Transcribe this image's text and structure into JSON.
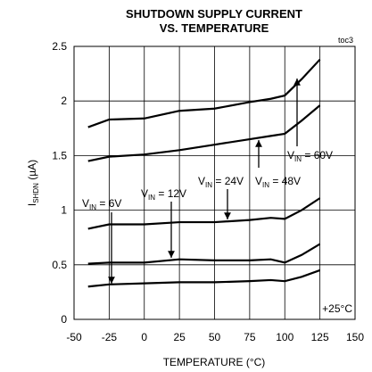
{
  "chart_data": {
    "type": "line",
    "title": [
      "SHUTDOWN SUPPLY CURRENT",
      "VS. TEMPERATURE"
    ],
    "x_label": "TEMPERATURE (°C)",
    "y_label": {
      "prefix": "I",
      "subscript": "SHDN",
      "suffix": " (µA)"
    },
    "x": [
      -40,
      -25,
      0,
      25,
      50,
      75,
      90,
      100,
      112,
      125
    ],
    "series": [
      {
        "name": {
          "prefix": "V",
          "subscript": "IN",
          "suffix": " = 60V"
        },
        "color": "#000000",
        "values": [
          1.76,
          1.83,
          1.84,
          1.91,
          1.93,
          1.99,
          2.02,
          2.05,
          2.2,
          2.38
        ]
      },
      {
        "name": {
          "prefix": "V",
          "subscript": "IN",
          "suffix": " = 48V"
        },
        "color": "#000000",
        "values": [
          1.45,
          1.49,
          1.51,
          1.55,
          1.6,
          1.65,
          1.68,
          1.7,
          1.82,
          1.96
        ]
      },
      {
        "name": {
          "prefix": "V",
          "subscript": "IN",
          "suffix": " = 24V"
        },
        "color": "#000000",
        "values": [
          0.83,
          0.87,
          0.87,
          0.89,
          0.89,
          0.91,
          0.93,
          0.92,
          1.0,
          1.11
        ]
      },
      {
        "name": {
          "prefix": "V",
          "subscript": "IN",
          "suffix": " = 12V"
        },
        "color": "#000000",
        "values": [
          0.51,
          0.52,
          0.52,
          0.55,
          0.54,
          0.54,
          0.55,
          0.52,
          0.59,
          0.69
        ]
      },
      {
        "name": {
          "prefix": "V",
          "subscript": "IN",
          "suffix": " = 6V"
        },
        "color": "#000000",
        "values": [
          0.3,
          0.32,
          0.33,
          0.34,
          0.34,
          0.35,
          0.36,
          0.35,
          0.39,
          0.45
        ]
      }
    ],
    "annotations": [
      "toc3",
      "+25°C"
    ],
    "xlim": [
      -50,
      150
    ],
    "xticks": [
      -50,
      -25,
      0,
      25,
      50,
      75,
      100,
      125,
      150
    ],
    "ylim": [
      0,
      2.5
    ],
    "yticks": [
      0,
      0.5,
      1,
      1.5,
      2,
      2.5
    ],
    "grid": true
  }
}
